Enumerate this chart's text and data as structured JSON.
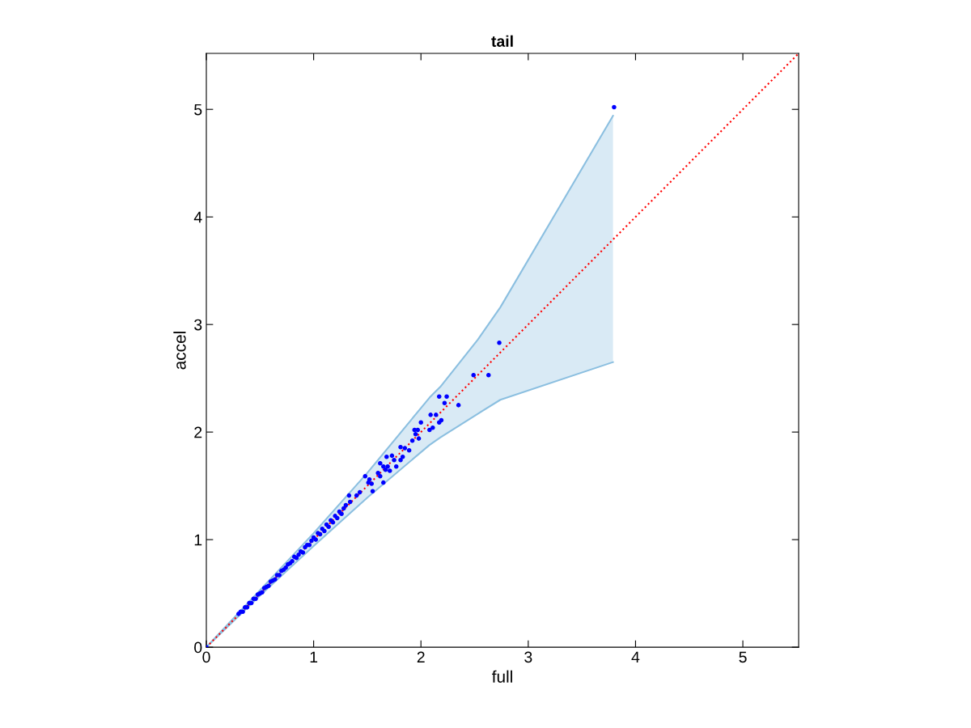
{
  "chart_data": {
    "type": "scatter",
    "title": "tail",
    "xlabel": "full",
    "ylabel": "accel",
    "xlim": [
      0,
      5.52
    ],
    "ylim": [
      0,
      5.52
    ],
    "xticks": [
      0,
      1,
      2,
      3,
      4,
      5
    ],
    "yticks": [
      0,
      1,
      2,
      3,
      4,
      5
    ],
    "grid": false,
    "series": [
      {
        "type": "line",
        "color": "#8bbfe0",
        "x": [
          0,
          0.5,
          1,
          1.5,
          2.08,
          2.18,
          2.53,
          2.74,
          3.79
        ],
        "values": [
          0,
          0.53,
          1.06,
          1.62,
          2.32,
          2.42,
          2.86,
          3.16,
          4.94
        ]
      },
      {
        "type": "line",
        "color": "#8bbfe0",
        "x": [
          0,
          0.5,
          1,
          1.5,
          2.08,
          2.18,
          2.53,
          2.74,
          3.79
        ],
        "values": [
          0,
          0.48,
          0.94,
          1.39,
          1.88,
          1.95,
          2.17,
          2.3,
          2.65
        ]
      },
      {
        "type": "line",
        "color": "#ff0000",
        "line_style": "dotted",
        "x": [
          0,
          0.5,
          1,
          1.5,
          2.08,
          2.18,
          2.53,
          2.74,
          3.79,
          5.52
        ],
        "values": [
          0,
          0.5,
          1,
          1.5,
          2.08,
          2.18,
          2.53,
          2.74,
          3.79,
          5.52
        ],
        "lower": [
          0,
          0.48,
          0.94,
          1.39,
          1.88,
          1.95,
          2.17,
          2.3,
          2.65,
          null
        ],
        "upper": [
          0,
          0.53,
          1.06,
          1.62,
          2.32,
          2.42,
          2.86,
          3.16,
          4.94,
          null
        ]
      },
      {
        "color": "#0000ff",
        "marker": "circle",
        "x": [
          0,
          0.3,
          0.32,
          0.34,
          0.36,
          0.38,
          0.4,
          0.42,
          0.44,
          0.46,
          0.48,
          0.5,
          0.52,
          0.54,
          0.56,
          0.58,
          0.6,
          0.62,
          0.64,
          0.66,
          0.68,
          0.7,
          0.72,
          0.74,
          0.76,
          0.78,
          0.8,
          0.82,
          0.84,
          0.86,
          0.88,
          0.9,
          0.92,
          0.94,
          0.96,
          0.98,
          1.0,
          1.02,
          1.04,
          1.06,
          1.08,
          1.1,
          1.12,
          1.14,
          1.16,
          1.18,
          1.2,
          1.22,
          1.24,
          1.26,
          1.28,
          1.3,
          1.34,
          1.33,
          1.4,
          1.43,
          1.55,
          1.54,
          1.51,
          1.52,
          1.48,
          1.65,
          1.62,
          1.6,
          1.71,
          1.67,
          1.77,
          1.65,
          1.69,
          1.62,
          1.81,
          1.75,
          1.68,
          1.73,
          1.83,
          1.89,
          1.85,
          1.81,
          1.92,
          1.98,
          1.95,
          1.97,
          1.94,
          2.0,
          2.11,
          2.08,
          2.19,
          2.17,
          2.14,
          2.09,
          2.35,
          2.22,
          2.24,
          2.17,
          2.63,
          2.49,
          2.73,
          3.8
        ],
        "values": [
          0,
          0.31,
          0.33,
          0.33,
          0.37,
          0.37,
          0.41,
          0.41,
          0.45,
          0.45,
          0.49,
          0.5,
          0.51,
          0.55,
          0.56,
          0.57,
          0.61,
          0.62,
          0.63,
          0.67,
          0.67,
          0.71,
          0.72,
          0.74,
          0.77,
          0.78,
          0.8,
          0.84,
          0.83,
          0.86,
          0.89,
          0.88,
          0.93,
          0.95,
          0.95,
          0.99,
          1.02,
          1.0,
          1.06,
          1.05,
          1.1,
          1.08,
          1.14,
          1.12,
          1.18,
          1.16,
          1.22,
          1.2,
          1.26,
          1.24,
          1.29,
          1.32,
          1.35,
          1.41,
          1.41,
          1.44,
          1.45,
          1.52,
          1.53,
          1.56,
          1.59,
          1.53,
          1.59,
          1.62,
          1.64,
          1.65,
          1.68,
          1.68,
          1.68,
          1.71,
          1.74,
          1.74,
          1.77,
          1.78,
          1.77,
          1.83,
          1.85,
          1.86,
          1.92,
          1.94,
          1.98,
          2.02,
          2.02,
          2.09,
          2.04,
          2.02,
          2.11,
          2.09,
          2.16,
          2.16,
          2.25,
          2.27,
          2.33,
          2.33,
          2.53,
          2.53,
          2.83,
          5.02
        ]
      }
    ]
  }
}
